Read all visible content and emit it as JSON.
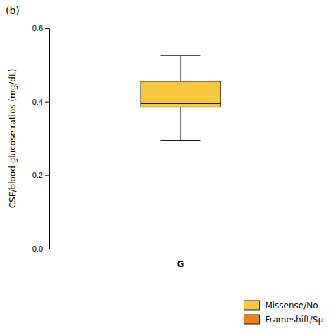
{
  "chart_data": {
    "type": "box",
    "ylabel": "CSF/blood glucose ratios (mg/dL)",
    "xlabel": "G",
    "annotations": [
      "(b)"
    ],
    "ylim": [
      0.0,
      0.6
    ],
    "yticks": [
      {
        "value": 0.0,
        "label": "0.0"
      },
      0.2,
      0.4,
      0.6
    ],
    "series": [
      {
        "name": "Missense/No",
        "color": "#F5C842",
        "whislo": 0.295,
        "q1": 0.385,
        "med": 0.395,
        "q3": 0.455,
        "whishi": 0.525
      },
      {
        "name": "Frameshift/Sp",
        "color": "#E8821A"
      }
    ],
    "legend": "lower right"
  }
}
